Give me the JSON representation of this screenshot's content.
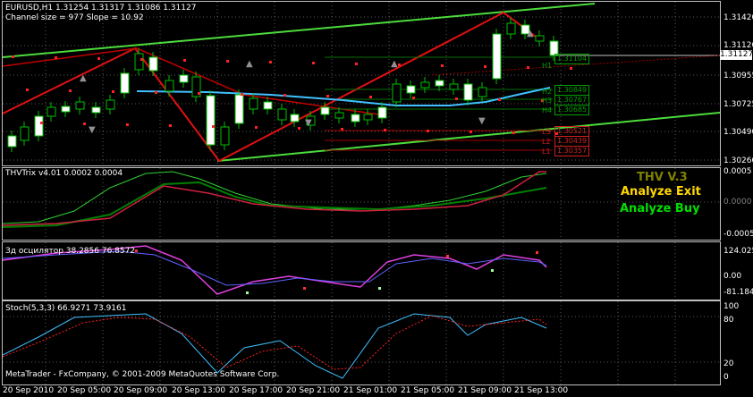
{
  "main": {
    "symbol_line": "EURUSD,H1  1.31254 1.31317 1.31086 1.31127",
    "channel_line": "Channel size = 977 Slope = 10.92",
    "price_scale": [
      "1.31420",
      "1.31120",
      "1.30955",
      "1.30725",
      "1.30490",
      "1.30260"
    ],
    "current_price": "1.31127",
    "level_labels": [
      {
        "text": "1.31104",
        "color": "#00a000"
      },
      {
        "text": "1.30849",
        "color": "#00a000"
      },
      {
        "text": "1.30767",
        "color": "#00a000"
      },
      {
        "text": "1.30685",
        "color": "#00a000"
      },
      {
        "text": "1.30521",
        "color": "#d02020"
      },
      {
        "text": "1.30439",
        "color": "#d02020"
      },
      {
        "text": "1.30357",
        "color": "#d02020"
      }
    ],
    "level_marks": [
      "H1",
      "H2",
      "H3",
      "H4",
      "L3",
      "L2",
      "L1"
    ]
  },
  "thv": {
    "title": "THVTrix v4.01 0.0002 0.0004",
    "scale": [
      "0.0005",
      "0.0000",
      "-0.0005"
    ],
    "current": "0.0000",
    "brand": "THV V.3",
    "exit_label": "Analyze Exit",
    "buy_label": "Analyze Buy",
    "colors": {
      "brand": "#808000",
      "exit": "#ffd700",
      "buy": "#00e000"
    }
  },
  "osc": {
    "title": "Зд осцилятор 38.2856 76.8572",
    "scale": [
      "124.0257",
      "0.00",
      "-81.1848"
    ]
  },
  "stoch": {
    "title": "Stoch(5,3,3) 66.9271 73.9161",
    "scale": [
      "100",
      "80",
      "20",
      "0"
    ],
    "copyright": "MetaTrader - FxCompany, © 2001-2009 MetaQuotes Software Corp."
  },
  "time_axis": [
    "20 Sep 2010",
    "20 Sep 05:00",
    "20 Sep 09:00",
    "20 Sep 13:00",
    "20 Sep 17:00",
    "20 Sep 21:00",
    "21 Sep 01:00",
    "21 Sep 05:00",
    "21 Sep 09:00",
    "21 Sep 13:00"
  ]
}
